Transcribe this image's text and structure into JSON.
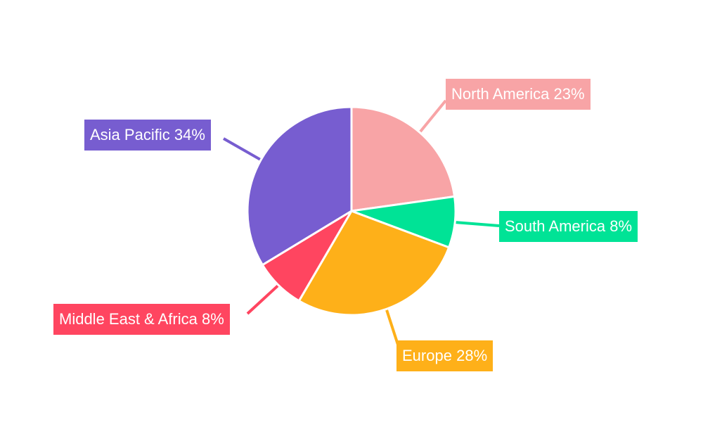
{
  "chart_data": {
    "type": "pie",
    "categories": [
      "North America",
      "South America",
      "Europe",
      "Middle East & Africa",
      "Asia Pacific"
    ],
    "values": [
      23,
      8,
      28,
      8,
      34
    ],
    "unit": "%",
    "colors": [
      "#F8A4A6",
      "#00E396",
      "#FEB019",
      "#FF4560",
      "#775DD0"
    ],
    "start_angle": "12 o'clock",
    "direction": "clockwise",
    "legend": "none"
  }
}
